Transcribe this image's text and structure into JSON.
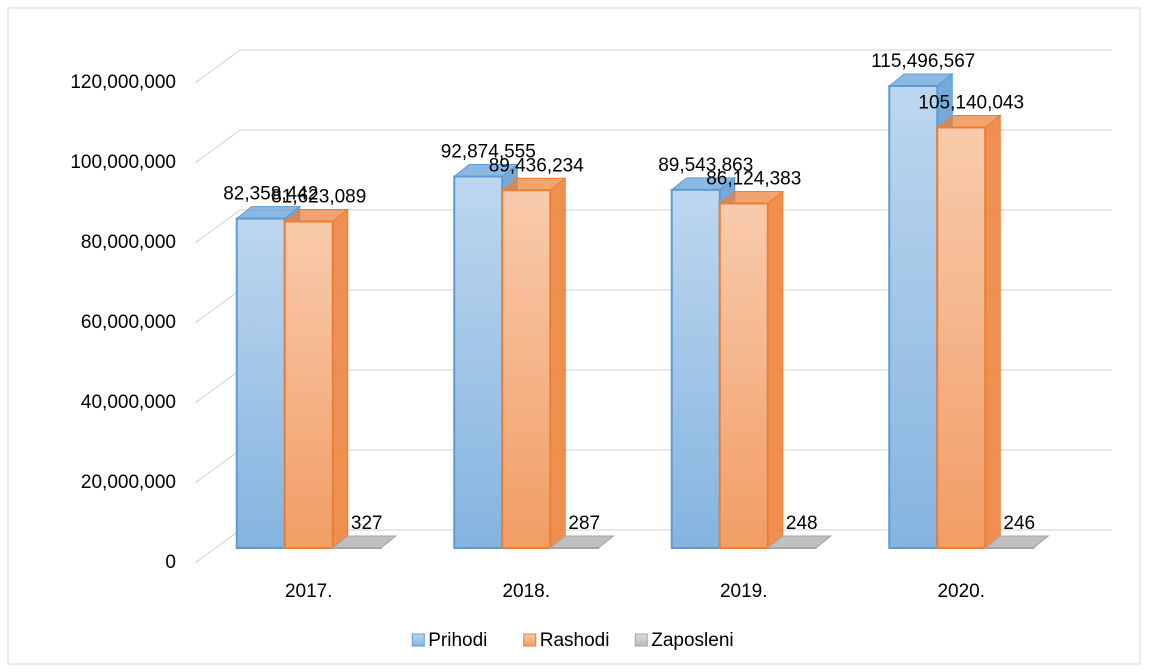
{
  "chart_data": {
    "type": "bar3d",
    "categories": [
      "2017.",
      "2018.",
      "2019.",
      "2020."
    ],
    "series": [
      {
        "name": "Prihodi",
        "color": "#5b9bd5",
        "values": [
          82358442,
          92874555,
          89543863,
          115496567
        ],
        "value_labels": [
          "82,358,442",
          "92,874,555",
          "89,543,863",
          "115,496,567"
        ]
      },
      {
        "name": "Rashodi",
        "color": "#ed7d31",
        "values": [
          81623089,
          89436234,
          86124383,
          105140043
        ],
        "value_labels": [
          "81,623,089",
          "89,436,234",
          "86,124,383",
          "105,140,043"
        ]
      },
      {
        "name": "Zaposleni",
        "color": "#a5a5a5",
        "values": [
          327,
          287,
          248,
          246
        ],
        "value_labels": [
          "327",
          "287",
          "248",
          "246"
        ]
      }
    ],
    "ylim": [
      0,
      120000000
    ],
    "yticks": [
      {
        "value": 0,
        "label": "0"
      },
      {
        "value": 20000000,
        "label": "20,000,000"
      },
      {
        "value": 40000000,
        "label": "40,000,000"
      },
      {
        "value": 60000000,
        "label": "60,000,000"
      },
      {
        "value": 80000000,
        "label": "80,000,000"
      },
      {
        "value": 100000000,
        "label": "100,000,000"
      },
      {
        "value": 120000000,
        "label": "120,000,000"
      }
    ],
    "grid": true,
    "legend": "bottom"
  }
}
